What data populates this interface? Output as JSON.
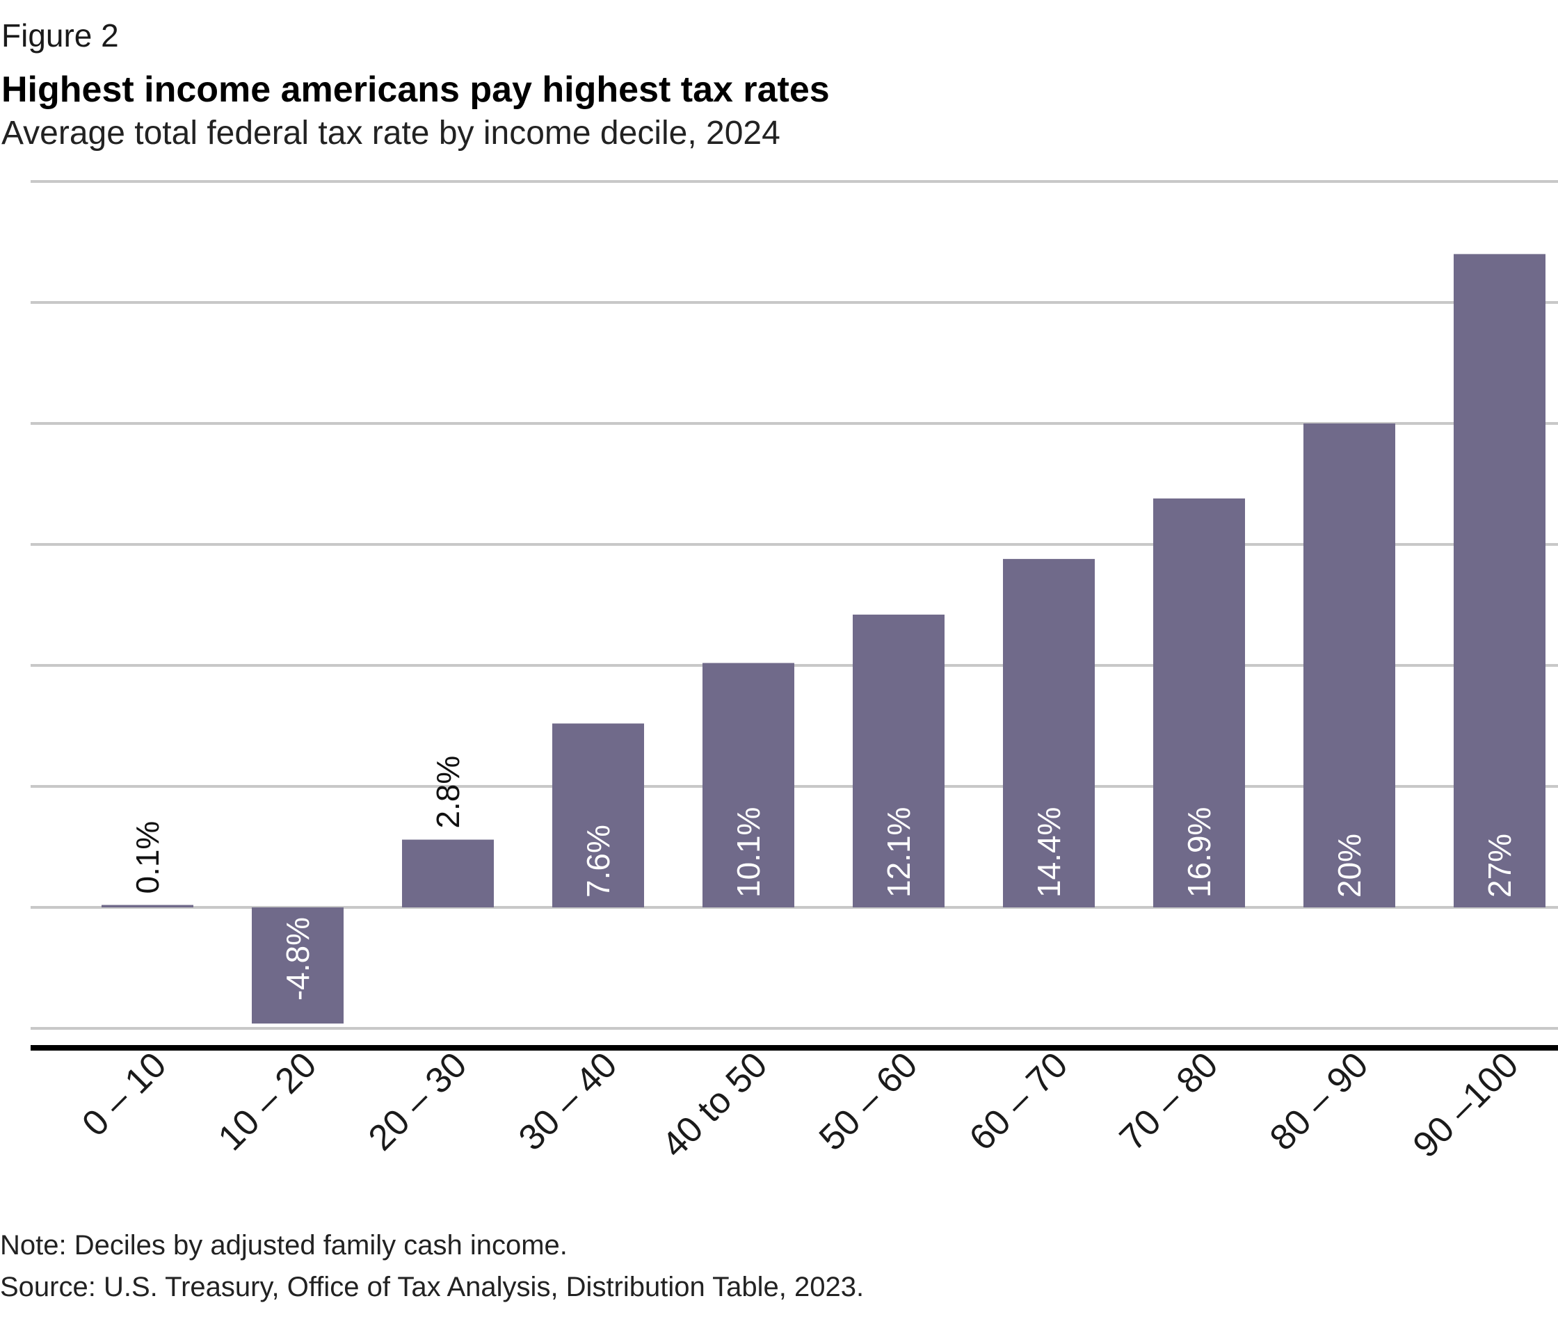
{
  "figure_label": "Figure 2",
  "note": "Note: Deciles by adjusted family cash income.",
  "source": "Source: U.S. Treasury, Office of Tax Analysis, Distribution Table, 2023.",
  "colors": {
    "bar": "#706a8a",
    "grid": "#c8c8c8",
    "axis": "#000000"
  },
  "chart_data": {
    "type": "bar",
    "title": "Highest income americans pay highest tax rates",
    "subtitle": "Average total federal tax rate by income decile, 2024",
    "xlabel": "",
    "ylabel": "",
    "categories": [
      "0 – 10",
      "10 – 20",
      "20 – 30",
      "30 – 40",
      "40 to 50",
      "50 – 60",
      "60 – 70",
      "70 – 80",
      "80 – 90",
      "90 –100"
    ],
    "values": [
      0.1,
      -4.8,
      2.8,
      7.6,
      10.1,
      12.1,
      14.4,
      16.9,
      20,
      27
    ],
    "data_labels": [
      "0.1%",
      "-4.8%",
      "2.8%",
      "7.6%",
      "10.1%",
      "12.1%",
      "14.4%",
      "16.9%",
      "20%",
      "27%"
    ],
    "ylim": [
      -5,
      30
    ],
    "grid": true,
    "legend": "none"
  }
}
